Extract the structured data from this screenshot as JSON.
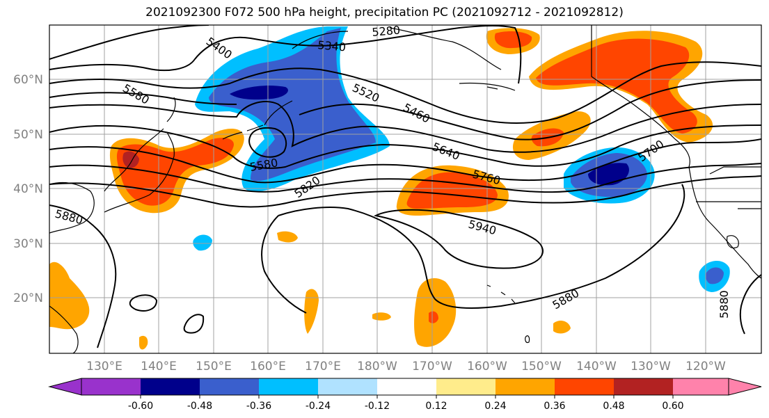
{
  "title": "2021092300 F072 500 hPa height, precipitation PC (2021092712 - 2021092812)",
  "lat_labels": [
    "60°N",
    "50°N",
    "40°N",
    "30°N",
    "20°N"
  ],
  "lon_labels": [
    "130°E",
    "140°E",
    "150°E",
    "160°E",
    "170°E",
    "180°W",
    "170°W",
    "160°W",
    "150°W",
    "140°W",
    "130°W",
    "120°W"
  ],
  "contour_labels": [
    "5400",
    "5340",
    "5280",
    "5580",
    "5520",
    "5460",
    "5580",
    "5640",
    "5760",
    "5700",
    "5820",
    "5880",
    "5940",
    "5880",
    "5880"
  ],
  "colorbar": {
    "ticks": [
      "-0.60",
      "-0.48",
      "-0.36",
      "-0.24",
      "-0.12",
      "0.12",
      "0.24",
      "0.36",
      "0.48",
      "0.60"
    ],
    "colors": [
      "#9932cc",
      "#00008b",
      "#3a5fcd",
      "#00bfff",
      "#b0e2ff",
      "#ffffff",
      "#ffec8b",
      "#ffa500",
      "#ff4500",
      "#b22222",
      "#ff82ab"
    ]
  }
}
